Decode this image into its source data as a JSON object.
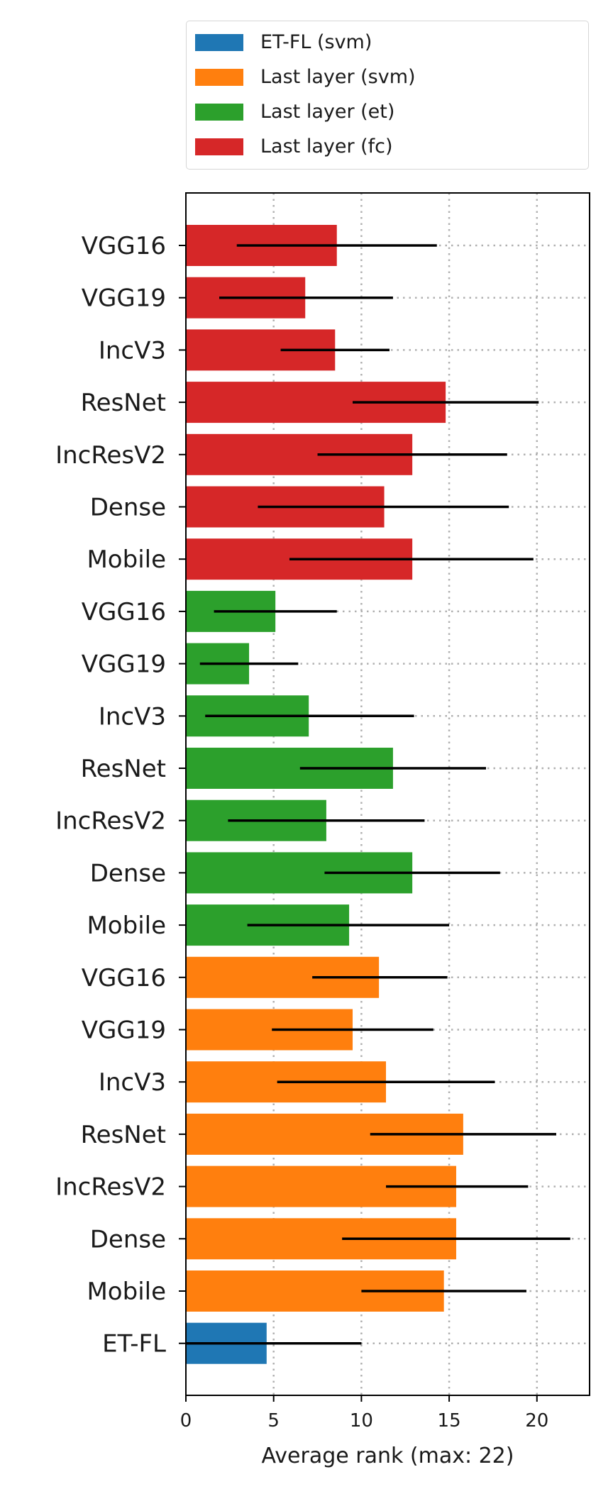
{
  "colors": {
    "et-fl-svm": "#1f77b4",
    "last-layer-svm": "#ff7f0e",
    "last-layer-et": "#2ca02c",
    "last-layer-fc": "#d62728",
    "grid": "#b0b0b0",
    "errorbar": "#000000"
  },
  "legend": [
    {
      "label": "ET-FL (svm)",
      "color_key": "et-fl-svm"
    },
    {
      "label": "Last layer (svm)",
      "color_key": "last-layer-svm"
    },
    {
      "label": "Last layer (et)",
      "color_key": "last-layer-et"
    },
    {
      "label": "Last layer (fc)",
      "color_key": "last-layer-fc"
    }
  ],
  "chart_data": {
    "type": "bar",
    "orientation": "horizontal",
    "xlabel": "Average rank (max: 22)",
    "ylabel": "",
    "title": "",
    "xlim": [
      0,
      23
    ],
    "xticks": [
      0,
      5,
      10,
      15,
      20
    ],
    "grid": "dotted",
    "legend_position": "above plot",
    "bars": [
      {
        "label": "VGG16",
        "group": "Last layer (fc)",
        "color_key": "last-layer-fc",
        "value": 8.6,
        "err_low": 2.9,
        "err_high": 14.3
      },
      {
        "label": "VGG19",
        "group": "Last layer (fc)",
        "color_key": "last-layer-fc",
        "value": 6.8,
        "err_low": 1.9,
        "err_high": 11.8
      },
      {
        "label": "IncV3",
        "group": "Last layer (fc)",
        "color_key": "last-layer-fc",
        "value": 8.5,
        "err_low": 5.4,
        "err_high": 11.6
      },
      {
        "label": "ResNet",
        "group": "Last layer (fc)",
        "color_key": "last-layer-fc",
        "value": 14.8,
        "err_low": 9.5,
        "err_high": 20.1
      },
      {
        "label": "IncResV2",
        "group": "Last layer (fc)",
        "color_key": "last-layer-fc",
        "value": 12.9,
        "err_low": 7.5,
        "err_high": 18.3
      },
      {
        "label": "Dense",
        "group": "Last layer (fc)",
        "color_key": "last-layer-fc",
        "value": 11.3,
        "err_low": 4.1,
        "err_high": 18.4
      },
      {
        "label": "Mobile",
        "group": "Last layer (fc)",
        "color_key": "last-layer-fc",
        "value": 12.9,
        "err_low": 5.9,
        "err_high": 19.8
      },
      {
        "label": "VGG16",
        "group": "Last layer (et)",
        "color_key": "last-layer-et",
        "value": 5.1,
        "err_low": 1.6,
        "err_high": 8.6
      },
      {
        "label": "VGG19",
        "group": "Last layer (et)",
        "color_key": "last-layer-et",
        "value": 3.6,
        "err_low": 0.8,
        "err_high": 6.4
      },
      {
        "label": "IncV3",
        "group": "Last layer (et)",
        "color_key": "last-layer-et",
        "value": 7.0,
        "err_low": 1.1,
        "err_high": 13.0
      },
      {
        "label": "ResNet",
        "group": "Last layer (et)",
        "color_key": "last-layer-et",
        "value": 11.8,
        "err_low": 6.5,
        "err_high": 17.1
      },
      {
        "label": "IncResV2",
        "group": "Last layer (et)",
        "color_key": "last-layer-et",
        "value": 8.0,
        "err_low": 2.4,
        "err_high": 13.6
      },
      {
        "label": "Dense",
        "group": "Last layer (et)",
        "color_key": "last-layer-et",
        "value": 12.9,
        "err_low": 7.9,
        "err_high": 17.9
      },
      {
        "label": "Mobile",
        "group": "Last layer (et)",
        "color_key": "last-layer-et",
        "value": 9.3,
        "err_low": 3.5,
        "err_high": 15.0
      },
      {
        "label": "VGG16",
        "group": "Last layer (svm)",
        "color_key": "last-layer-svm",
        "value": 11.0,
        "err_low": 7.2,
        "err_high": 14.9
      },
      {
        "label": "VGG19",
        "group": "Last layer (svm)",
        "color_key": "last-layer-svm",
        "value": 9.5,
        "err_low": 4.9,
        "err_high": 14.1
      },
      {
        "label": "IncV3",
        "group": "Last layer (svm)",
        "color_key": "last-layer-svm",
        "value": 11.4,
        "err_low": 5.2,
        "err_high": 17.6
      },
      {
        "label": "ResNet",
        "group": "Last layer (svm)",
        "color_key": "last-layer-svm",
        "value": 15.8,
        "err_low": 10.5,
        "err_high": 21.1
      },
      {
        "label": "IncResV2",
        "group": "Last layer (svm)",
        "color_key": "last-layer-svm",
        "value": 15.4,
        "err_low": 11.4,
        "err_high": 19.5
      },
      {
        "label": "Dense",
        "group": "Last layer (svm)",
        "color_key": "last-layer-svm",
        "value": 15.4,
        "err_low": 8.9,
        "err_high": 21.9
      },
      {
        "label": "Mobile",
        "group": "Last layer (svm)",
        "color_key": "last-layer-svm",
        "value": 14.7,
        "err_low": 10.0,
        "err_high": 19.4
      },
      {
        "label": "ET-FL",
        "group": "ET-FL (svm)",
        "color_key": "et-fl-svm",
        "value": 4.6,
        "err_low": 0.0,
        "err_high": 10.0
      }
    ]
  }
}
